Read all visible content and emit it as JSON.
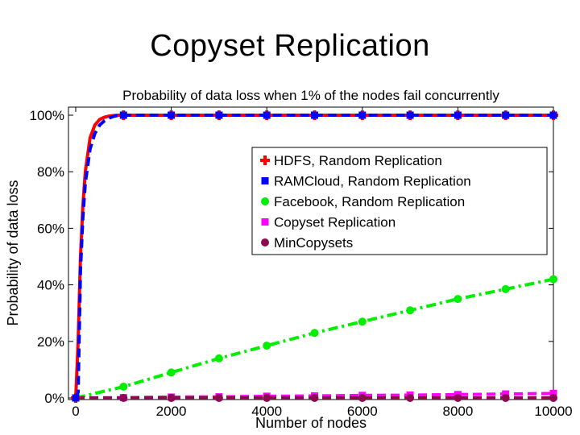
{
  "slide": {
    "title": "Copyset Replication"
  },
  "colors": {
    "hdfs": "#ff0000",
    "ramcloud": "#0000ff",
    "facebook": "#00ee00",
    "copyset": "#ff00ff",
    "mincopysets": "#8b0a50"
  },
  "chart_data": {
    "type": "line",
    "title": "Probability of data loss when 1% of the nodes fail concurrently",
    "xlabel": "Number of nodes",
    "ylabel": "Probability of data loss",
    "xlim": [
      0,
      10000
    ],
    "ylim": [
      0,
      100
    ],
    "xticks": [
      0,
      2000,
      4000,
      6000,
      8000,
      10000
    ],
    "xtick_labels": [
      "0",
      "2000",
      "4000",
      "6000",
      "8000",
      "10000"
    ],
    "yticks": [
      0,
      20,
      40,
      60,
      80,
      100
    ],
    "ytick_labels": [
      "0%",
      "20%",
      "40%",
      "60%",
      "80%",
      "100%"
    ],
    "grid": false,
    "legend": "upper-right",
    "series": [
      {
        "name": "HDFS, Random Replication",
        "color": "#ff0000",
        "line": "solid",
        "marker": "plus",
        "x": [
          0,
          50,
          100,
          150,
          200,
          300,
          400,
          500,
          600,
          700,
          800,
          900,
          1000,
          2000,
          3000,
          4000,
          5000,
          6000,
          7000,
          8000,
          9000,
          10000
        ],
        "y": [
          0,
          20,
          50,
          68,
          80,
          92,
          96.5,
          98.5,
          99.3,
          99.7,
          99.9,
          100,
          100,
          100,
          100,
          100,
          100,
          100,
          100,
          100,
          100,
          100
        ],
        "marker_x": [
          0,
          1000,
          2000,
          3000,
          4000,
          5000,
          6000,
          7000,
          8000,
          9000,
          10000
        ]
      },
      {
        "name": "RAMCloud, Random Replication",
        "color": "#0000ff",
        "line": "dashed",
        "marker": "square",
        "x": [
          0,
          50,
          100,
          150,
          200,
          300,
          400,
          500,
          600,
          700,
          800,
          900,
          1000,
          2000,
          3000,
          4000,
          5000,
          6000,
          7000,
          8000,
          9000,
          10000
        ],
        "y": [
          0,
          2,
          45,
          64,
          76,
          88,
          93.5,
          96.5,
          98,
          99,
          99.6,
          100,
          100,
          100,
          100,
          100,
          100,
          100,
          100,
          100,
          100,
          100
        ],
        "marker_x": [
          0,
          1000,
          2000,
          3000,
          4000,
          5000,
          6000,
          7000,
          8000,
          9000,
          10000
        ]
      },
      {
        "name": "Facebook, Random Replication",
        "color": "#00ee00",
        "line": "dashdot",
        "marker": "circle",
        "x": [
          0,
          1000,
          2000,
          3000,
          4000,
          5000,
          6000,
          7000,
          8000,
          9000,
          10000
        ],
        "y": [
          0,
          4,
          9,
          14,
          18.5,
          23,
          27,
          31,
          35,
          38.5,
          42
        ]
      },
      {
        "name": "Copyset Replication",
        "color": "#ff00ff",
        "line": "dashed",
        "marker": "square",
        "x": [
          0,
          1000,
          2000,
          3000,
          4000,
          5000,
          6000,
          7000,
          8000,
          9000,
          10000
        ],
        "y": [
          0,
          0.1,
          0.3,
          0.4,
          0.6,
          0.7,
          0.9,
          1.0,
          1.2,
          1.4,
          1.6
        ]
      },
      {
        "name": "MinCopysets",
        "color": "#8b0a50",
        "line": "dashed",
        "marker": "circle",
        "x": [
          0,
          1000,
          2000,
          3000,
          4000,
          5000,
          6000,
          7000,
          8000,
          9000,
          10000
        ],
        "y": [
          0,
          0,
          0,
          0,
          0,
          0,
          0,
          0,
          0,
          0,
          0
        ]
      }
    ]
  }
}
